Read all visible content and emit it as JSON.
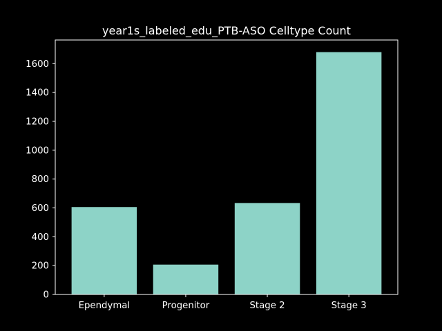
{
  "chart_data": {
    "type": "bar",
    "title": "year1s_labeled_edu_PTB-ASO Celltype Count",
    "xlabel": "",
    "ylabel": "",
    "categories": [
      "Ependymal",
      "Progenitor",
      "Stage 2",
      "Stage 3"
    ],
    "values": [
      606,
      207,
      634,
      1680
    ],
    "ylim": [
      0,
      1764
    ],
    "yticks": [
      0,
      200,
      400,
      600,
      800,
      1000,
      1200,
      1400,
      1600
    ],
    "grid": false,
    "legend": "none",
    "colors": {
      "background": "#000000",
      "bar": "#8dd3c7",
      "axis": "#ffffff",
      "text": "#ffffff"
    }
  }
}
